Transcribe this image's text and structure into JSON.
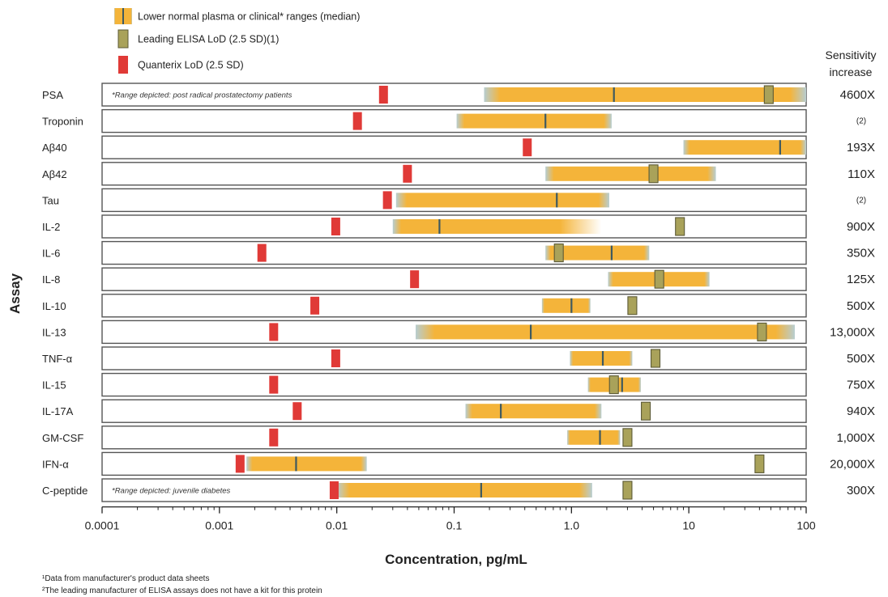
{
  "chart_data": {
    "type": "bar",
    "subtype": "horizontal-range-log",
    "xscale": "log",
    "xlim": [
      0.0001,
      100
    ],
    "xticks": [
      {
        "value": 0.0001,
        "label": "0.0001"
      },
      {
        "value": 0.001,
        "label": "0.001"
      },
      {
        "value": 0.01,
        "label": "0.01"
      },
      {
        "value": 0.1,
        "label": "0.1"
      },
      {
        "value": 1,
        "label": "1.0"
      },
      {
        "value": 10,
        "label": "10"
      },
      {
        "value": 100,
        "label": "100"
      }
    ],
    "xlabel": "Concentration, pg/mL",
    "ylabel": "Assay",
    "sensitivity_header": [
      "Sensitivity",
      "increase"
    ],
    "legend": {
      "placement": "top-left",
      "items": [
        {
          "key": "range",
          "label": "Lower normal plasma or clinical* ranges (median)"
        },
        {
          "key": "elisa",
          "label": "Leading ELISA LoD (2.5 SD)(1)"
        },
        {
          "key": "quanterix",
          "label": "Quanterix LoD (2.5 SD)"
        }
      ]
    },
    "colors": {
      "range": "#f4b43a",
      "range_edge": "#b7cdd0",
      "elisa": "#a9a25a",
      "quanterix": "#e03a37",
      "median": "#3f5a60",
      "row_border": "#555555"
    },
    "assays": [
      {
        "name": "PSA",
        "quanterix_lod": 0.025,
        "range": [
          0.18,
          100
        ],
        "median": 2.3,
        "elisa_lod": 48,
        "sensitivity": "4600X",
        "note": "*Range depicted: post radical prostatectomy patients"
      },
      {
        "name": "Troponin",
        "quanterix_lod": 0.015,
        "range": [
          0.105,
          2.2
        ],
        "median": 0.6,
        "elisa_lod": null,
        "sensitivity": "(2)"
      },
      {
        "name": "Aβ40",
        "quanterix_lod": 0.42,
        "range": [
          9,
          100
        ],
        "median": 60,
        "elisa_lod": null,
        "sensitivity": "193X"
      },
      {
        "name": "Aβ42",
        "quanterix_lod": 0.04,
        "range": [
          0.6,
          17
        ],
        "median": 5,
        "elisa_lod": 5,
        "sensitivity": "110X"
      },
      {
        "name": "Tau",
        "quanterix_lod": 0.027,
        "range": [
          0.032,
          2.1
        ],
        "median": 0.75,
        "elisa_lod": null,
        "sensitivity": "(2)"
      },
      {
        "name": "IL-2",
        "quanterix_lod": 0.0098,
        "range": [
          0.03,
          1.8
        ],
        "median": 0.075,
        "elisa_lod": 8.4,
        "sensitivity": "900X"
      },
      {
        "name": "IL-6",
        "quanterix_lod": 0.0023,
        "range": [
          0.6,
          4.6
        ],
        "median": 2.2,
        "elisa_lod": 0.78,
        "sensitivity": "350X"
      },
      {
        "name": "IL-8",
        "quanterix_lod": 0.046,
        "range": [
          2.05,
          15
        ],
        "median": 5.6,
        "elisa_lod": 5.6,
        "sensitivity": "125X"
      },
      {
        "name": "IL-10",
        "quanterix_lod": 0.0065,
        "range": [
          0.56,
          1.45
        ],
        "median": 1.0,
        "elisa_lod": 3.3,
        "sensitivity": "500X"
      },
      {
        "name": "IL-13",
        "quanterix_lod": 0.0029,
        "range": [
          0.047,
          80
        ],
        "median": 0.45,
        "elisa_lod": 42,
        "sensitivity": "13,000X"
      },
      {
        "name": "TNF-α",
        "quanterix_lod": 0.0098,
        "range": [
          0.97,
          3.3
        ],
        "median": 1.85,
        "elisa_lod": 5.2,
        "sensitivity": "500X"
      },
      {
        "name": "IL-15",
        "quanterix_lod": 0.0029,
        "range": [
          1.38,
          3.9
        ],
        "median": 2.7,
        "elisa_lod": 2.3,
        "sensitivity": "750X"
      },
      {
        "name": "IL-17A",
        "quanterix_lod": 0.0046,
        "range": [
          0.125,
          1.8
        ],
        "median": 0.25,
        "elisa_lod": 4.3,
        "sensitivity": "940X"
      },
      {
        "name": "GM-CSF",
        "quanterix_lod": 0.0029,
        "range": [
          0.92,
          2.6
        ],
        "median": 1.75,
        "elisa_lod": 3.0,
        "sensitivity": "1,000X"
      },
      {
        "name": "IFN-α",
        "quanterix_lod": 0.0015,
        "range": [
          0.0017,
          0.018
        ],
        "median": 0.0045,
        "elisa_lod": 40,
        "sensitivity": "20,000X"
      },
      {
        "name": "C-peptide",
        "quanterix_lod": 0.0095,
        "range": [
          0.01,
          1.5
        ],
        "median": 0.17,
        "elisa_lod": 3.0,
        "sensitivity": "300X",
        "note": "*Range depicted: juvenile diabetes"
      }
    ],
    "footnotes": [
      "¹Data from manufacturer's product data sheets",
      "²The leading manufacturer of ELISA assays does not have a kit for this protein"
    ]
  }
}
